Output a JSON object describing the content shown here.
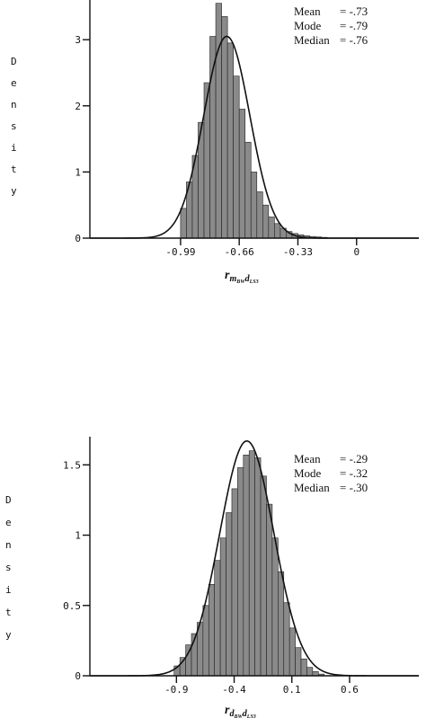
{
  "chart_data": [
    {
      "type": "bar",
      "overlay": "normal-density-curve",
      "ylabel": "Density",
      "xlabel": {
        "main": "r",
        "sub1": "m",
        "sub1sub": "BW",
        "sub2": "d",
        "sub2sub": "LS3"
      },
      "xlim": [
        -1.5,
        0.35
      ],
      "ylim": [
        0,
        3.6
      ],
      "x_ticks": [
        "-0.99",
        "-0.66",
        "-0.33",
        "0"
      ],
      "x_tick_values": [
        -0.99,
        -0.66,
        -0.33,
        0
      ],
      "y_ticks": [
        "0",
        "1",
        "2",
        "3"
      ],
      "y_tick_values": [
        0,
        1,
        2,
        3
      ],
      "stats": [
        {
          "label": "Mean",
          "value": "= -.73"
        },
        {
          "label": "Mode",
          "value": "= -.79"
        },
        {
          "label": "Median",
          "value": "= -.76"
        }
      ],
      "bin_width": 0.033,
      "bins": [
        {
          "x": -0.99,
          "density": 0.45
        },
        {
          "x": -0.957,
          "density": 0.85
        },
        {
          "x": -0.924,
          "density": 1.25
        },
        {
          "x": -0.891,
          "density": 1.75
        },
        {
          "x": -0.858,
          "density": 2.35
        },
        {
          "x": -0.825,
          "density": 3.05
        },
        {
          "x": -0.792,
          "density": 3.55
        },
        {
          "x": -0.759,
          "density": 3.35
        },
        {
          "x": -0.726,
          "density": 2.95
        },
        {
          "x": -0.693,
          "density": 2.45
        },
        {
          "x": -0.66,
          "density": 1.95
        },
        {
          "x": -0.627,
          "density": 1.45
        },
        {
          "x": -0.594,
          "density": 1.0
        },
        {
          "x": -0.561,
          "density": 0.7
        },
        {
          "x": -0.528,
          "density": 0.5
        },
        {
          "x": -0.495,
          "density": 0.32
        },
        {
          "x": -0.462,
          "density": 0.22
        },
        {
          "x": -0.429,
          "density": 0.15
        },
        {
          "x": -0.396,
          "density": 0.1
        },
        {
          "x": -0.363,
          "density": 0.07
        },
        {
          "x": -0.33,
          "density": 0.05
        },
        {
          "x": -0.297,
          "density": 0.035
        },
        {
          "x": -0.264,
          "density": 0.025
        },
        {
          "x": -0.231,
          "density": 0.018
        },
        {
          "x": -0.198,
          "density": 0.012
        }
      ],
      "curve": {
        "mean": -0.73,
        "sd": 0.13,
        "peak": 3.05
      }
    },
    {
      "type": "bar",
      "overlay": "normal-density-curve",
      "ylabel": "Density",
      "xlabel": {
        "main": "r",
        "sub1": "d",
        "sub1sub": "BW",
        "sub2": "d",
        "sub2sub": "LS3"
      },
      "xlim": [
        -1.65,
        1.2
      ],
      "ylim": [
        0,
        1.7
      ],
      "x_ticks": [
        "-0.9",
        "-0.4",
        "0.1",
        "0.6"
      ],
      "x_tick_values": [
        -0.9,
        -0.4,
        0.1,
        0.6
      ],
      "y_ticks": [
        "0",
        "0.5",
        "1",
        "1.5"
      ],
      "y_tick_values": [
        0,
        0.5,
        1,
        1.5
      ],
      "stats": [
        {
          "label": "Mean",
          "value": "= -.29"
        },
        {
          "label": "Mode",
          "value": "= -.32"
        },
        {
          "label": "Median",
          "value": "= -.30"
        }
      ],
      "bin_width": 0.05,
      "bins": [
        {
          "x": -0.92,
          "density": 0.07
        },
        {
          "x": -0.87,
          "density": 0.13
        },
        {
          "x": -0.82,
          "density": 0.22
        },
        {
          "x": -0.77,
          "density": 0.3
        },
        {
          "x": -0.72,
          "density": 0.38
        },
        {
          "x": -0.67,
          "density": 0.5
        },
        {
          "x": -0.62,
          "density": 0.65
        },
        {
          "x": -0.57,
          "density": 0.82
        },
        {
          "x": -0.52,
          "density": 0.98
        },
        {
          "x": -0.47,
          "density": 1.16
        },
        {
          "x": -0.42,
          "density": 1.33
        },
        {
          "x": -0.37,
          "density": 1.48
        },
        {
          "x": -0.32,
          "density": 1.57
        },
        {
          "x": -0.27,
          "density": 1.6
        },
        {
          "x": -0.22,
          "density": 1.55
        },
        {
          "x": -0.17,
          "density": 1.42
        },
        {
          "x": -0.12,
          "density": 1.22
        },
        {
          "x": -0.07,
          "density": 0.98
        },
        {
          "x": -0.02,
          "density": 0.74
        },
        {
          "x": 0.03,
          "density": 0.52
        },
        {
          "x": 0.08,
          "density": 0.34
        },
        {
          "x": 0.13,
          "density": 0.2
        },
        {
          "x": 0.18,
          "density": 0.12
        },
        {
          "x": 0.23,
          "density": 0.06
        },
        {
          "x": 0.28,
          "density": 0.03
        },
        {
          "x": 0.33,
          "density": 0.012
        }
      ],
      "curve": {
        "mean": -0.29,
        "sd": 0.235,
        "peak": 1.67
      }
    }
  ]
}
